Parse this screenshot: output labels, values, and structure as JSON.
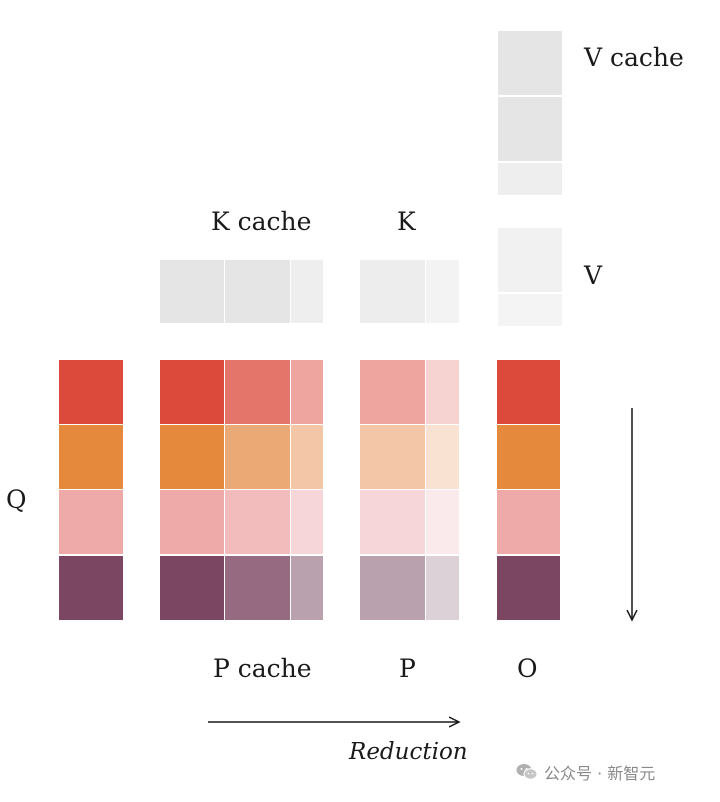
{
  "labels": {
    "q": "Q",
    "k_cache": "K cache",
    "k": "K",
    "v_cache": "V cache",
    "v": "V",
    "p_cache": "P cache",
    "p": "P",
    "o": "O",
    "reduction": "Reduction"
  },
  "watermark": {
    "text": "公众号 · 新智元",
    "icon": "wechat-icon"
  },
  "colors": {
    "row_red": "#dc4a3b",
    "row_orange": "#e5893c",
    "row_pink": "#eeaaa8",
    "row_purple": "#7b4662",
    "cache_gray": "#e6e5e5",
    "arrow": "#1a1a1a"
  },
  "grid_colors": {
    "q_column": [
      "#dc4a3b",
      "#e5893c",
      "#eeaaa8",
      "#7b4662"
    ],
    "p_cache": [
      [
        "#dc4a3b",
        "#e4756a",
        "#eea49f"
      ],
      [
        "#e5893c",
        "#ebaa75",
        "#f2c6a6"
      ],
      [
        "#eeaaa8",
        "#f2bbbc",
        "#f6d6d8"
      ],
      [
        "#7b4662",
        "#966b81",
        "#b9a1ae"
      ]
    ],
    "p": [
      [
        "#eea49f",
        "#f6d3d0"
      ],
      [
        "#f2c6a6",
        "#f9e2d2"
      ],
      [
        "#f6d6d8",
        "#faeaec"
      ],
      [
        "#b9a1ae",
        "#dcd1d7"
      ]
    ],
    "o_column": [
      "#dc4a3b",
      "#e5893c",
      "#eeaaa8",
      "#7b4662"
    ],
    "k_cache": [
      "#e6e5e5",
      "#e6e5e5",
      "#efeeee"
    ],
    "k": [
      "#ededed",
      "#f3f3f3"
    ],
    "v_cache": [
      "#e6e5e5",
      "#e6e5e5",
      "#efeeee"
    ],
    "v": [
      "#f1f1f1",
      "#f4f4f4"
    ]
  }
}
